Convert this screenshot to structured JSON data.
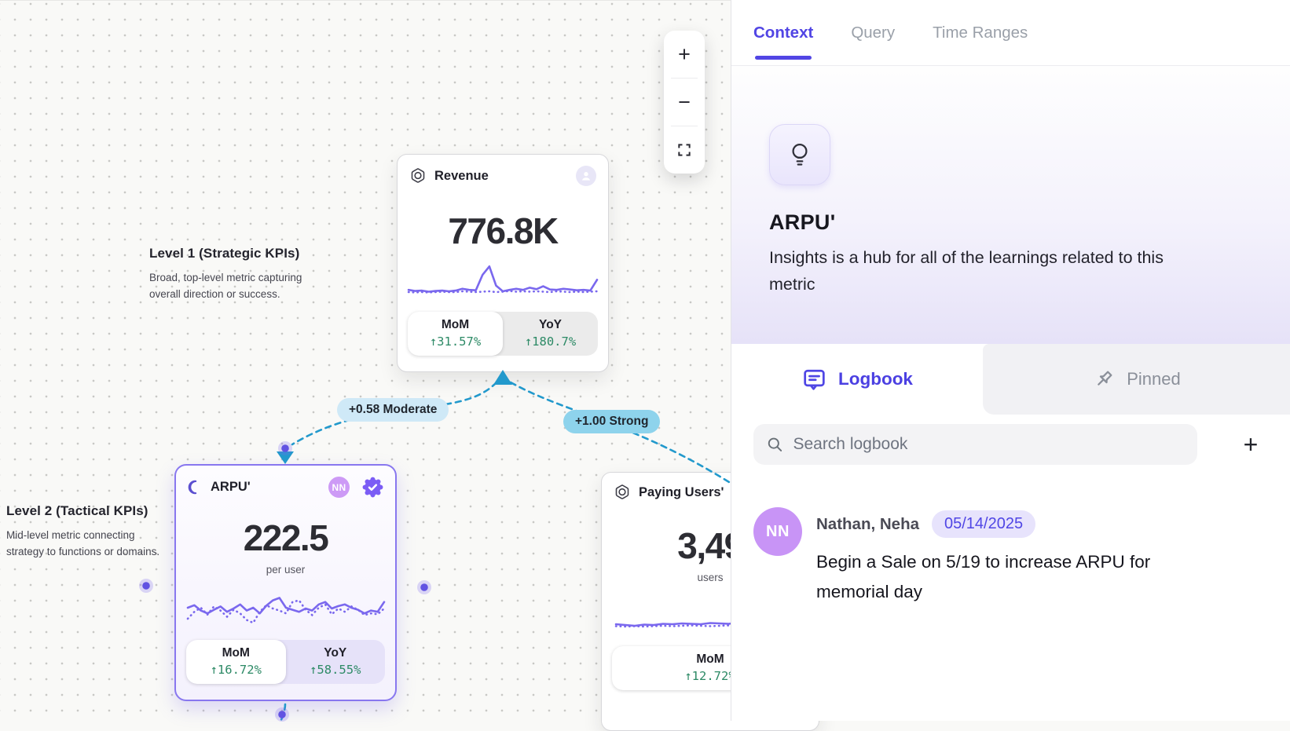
{
  "canvas": {
    "zoom_controls": {
      "zoom_in": "+",
      "zoom_out": "−"
    },
    "annotations": {
      "level1": {
        "title": "Level 1 (Strategic KPIs)",
        "line1": "Broad, top-level metric capturing",
        "line2": "overall direction or success."
      },
      "level2": {
        "title": "Level 2 (Tactical KPIs)",
        "line1": "Mid-level metric connecting",
        "line2": "strategy to functions or domains."
      }
    },
    "edges": {
      "revenue_arpu": {
        "label": "+0.58 Moderate"
      },
      "revenue_paying": {
        "label": "+1.00 Strong"
      }
    },
    "cards": {
      "revenue": {
        "title": "Revenue",
        "value": "776.8K",
        "mom_label": "MoM",
        "mom_value": "↑31.57%",
        "yoy_label": "YoY",
        "yoy_value": "↑180.7%",
        "spark_solid": [
          30,
          27,
          28,
          25,
          27,
          28,
          26,
          28,
          33,
          30,
          29,
          72,
          95,
          42,
          26,
          30,
          33,
          30,
          36,
          32,
          40,
          31,
          30,
          33,
          31,
          29,
          30,
          28,
          58
        ],
        "spark_dotted": [
          24,
          23,
          24,
          23,
          24,
          25,
          24,
          24,
          26,
          25,
          24,
          25,
          26,
          24,
          25,
          27,
          25,
          26,
          25,
          26,
          25,
          24,
          26,
          25,
          24,
          25,
          24,
          25,
          26
        ]
      },
      "arpu": {
        "title": "ARPU'",
        "value": "222.5",
        "unit": "per user",
        "avatar": "NN",
        "mom_label": "MoM",
        "mom_value": "↑16.72%",
        "yoy_label": "YoY",
        "yoy_value": "↑58.55%",
        "spark_solid": [
          52,
          58,
          45,
          38,
          47,
          55,
          42,
          50,
          60,
          45,
          52,
          38,
          57,
          70,
          76,
          52,
          47,
          42,
          50,
          45,
          60,
          66,
          50,
          56,
          60,
          52,
          47,
          38,
          45,
          42,
          66
        ],
        "spark_dotted": [
          25,
          42,
          52,
          35,
          55,
          45,
          30,
          47,
          38,
          22,
          15,
          42,
          58,
          50,
          45,
          38,
          66,
          70,
          47,
          34,
          52,
          60,
          36,
          50,
          42,
          55,
          47,
          34,
          38,
          36,
          50
        ]
      },
      "paying": {
        "title": "Paying Users'",
        "value": "3,49",
        "unit": "users",
        "mom_label": "MoM",
        "mom_value": "↑12.72%",
        "spark_solid": [
          28,
          26,
          24,
          27,
          26,
          29,
          28,
          30,
          29,
          28,
          31,
          30,
          29,
          33,
          36,
          30,
          28,
          88,
          52,
          28,
          30
        ],
        "spark_dotted": [
          23,
          22,
          23,
          22,
          23,
          24,
          23,
          24,
          25,
          24,
          23,
          24,
          25,
          24,
          23,
          24,
          23,
          23,
          23,
          23,
          23
        ]
      }
    }
  },
  "sidebar": {
    "tabs": {
      "context": "Context",
      "query": "Query",
      "time_ranges": "Time Ranges"
    },
    "hero": {
      "title": "ARPU'",
      "description": "Insights is a hub for all of the learnings related to this metric"
    },
    "sections": {
      "logbook": "Logbook",
      "pinned": "Pinned"
    },
    "search_placeholder": "Search logbook",
    "add_label": "+",
    "entries": [
      {
        "avatar": "NN",
        "author": "Nathan, Neha",
        "date": "05/14/2025",
        "text": "Begin a Sale on 5/19 to increase ARPU for memorial day"
      }
    ]
  },
  "colors": {
    "accent": "#5145e4",
    "positive": "#2d8a66",
    "edge": "#2299cc",
    "node_purple": "#7a68ee"
  }
}
